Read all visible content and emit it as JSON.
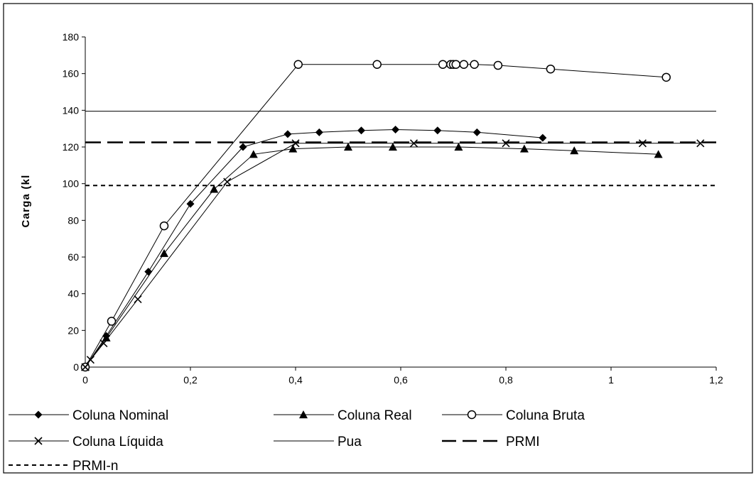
{
  "chart_data": {
    "type": "line",
    "title": "",
    "xlabel": "",
    "ylabel": "Carga (kl",
    "xlim": [
      0,
      1.2
    ],
    "ylim": [
      0,
      180
    ],
    "x_ticks": [
      "0",
      "0,2",
      "0,4",
      "0,6",
      "0,8",
      "1",
      "1,2"
    ],
    "y_ticks": [
      "0",
      "20",
      "40",
      "60",
      "80",
      "100",
      "120",
      "140",
      "160",
      "180"
    ],
    "grid": false,
    "legend_position": "bottom",
    "series": [
      {
        "name": "Coluna Nominal",
        "marker": "diamond",
        "line": "solid",
        "x": [
          0,
          0.04,
          0.12,
          0.2,
          0.3,
          0.385,
          0.445,
          0.525,
          0.59,
          0.67,
          0.745,
          0.87
        ],
        "y": [
          0,
          17,
          52,
          89,
          120,
          127,
          128,
          129,
          129.5,
          129,
          128,
          125
        ]
      },
      {
        "name": "Coluna Real",
        "marker": "triangle",
        "line": "solid",
        "x": [
          0,
          0.04,
          0.15,
          0.245,
          0.32,
          0.395,
          0.5,
          0.585,
          0.71,
          0.835,
          0.93,
          1.09
        ],
        "y": [
          0,
          16,
          62,
          97,
          116,
          119,
          120,
          120,
          120,
          119,
          118,
          116
        ]
      },
      {
        "name": "Coluna Bruta",
        "marker": "circle-open",
        "line": "solid",
        "x": [
          0,
          0.05,
          0.15,
          0.405,
          0.555,
          0.68,
          0.695,
          0.7,
          0.705,
          0.72,
          0.74,
          0.785,
          0.885,
          1.105
        ],
        "y": [
          0,
          25,
          77,
          165,
          165,
          165,
          165,
          165,
          165,
          165,
          165,
          164.5,
          162.5,
          158
        ]
      },
      {
        "name": "Coluna Líquida",
        "marker": "x",
        "line": "solid",
        "x": [
          0,
          0.01,
          0.035,
          0.1,
          0.27,
          0.4,
          0.625,
          0.8,
          1.06,
          1.17
        ],
        "y": [
          0,
          4,
          13,
          37,
          101,
          122,
          122,
          122,
          122,
          122
        ]
      },
      {
        "name": "Pua",
        "marker": "none",
        "line": "solid",
        "x": [
          0,
          1.2
        ],
        "y": [
          139.5,
          139.5
        ]
      },
      {
        "name": "PRMI",
        "marker": "none",
        "line": "long-dash",
        "x": [
          0,
          1.2
        ],
        "y": [
          122.5,
          122.5
        ]
      },
      {
        "name": "PRMI-n",
        "marker": "none",
        "line": "short-dash",
        "x": [
          0,
          1.2
        ],
        "y": [
          99,
          99
        ]
      }
    ]
  }
}
